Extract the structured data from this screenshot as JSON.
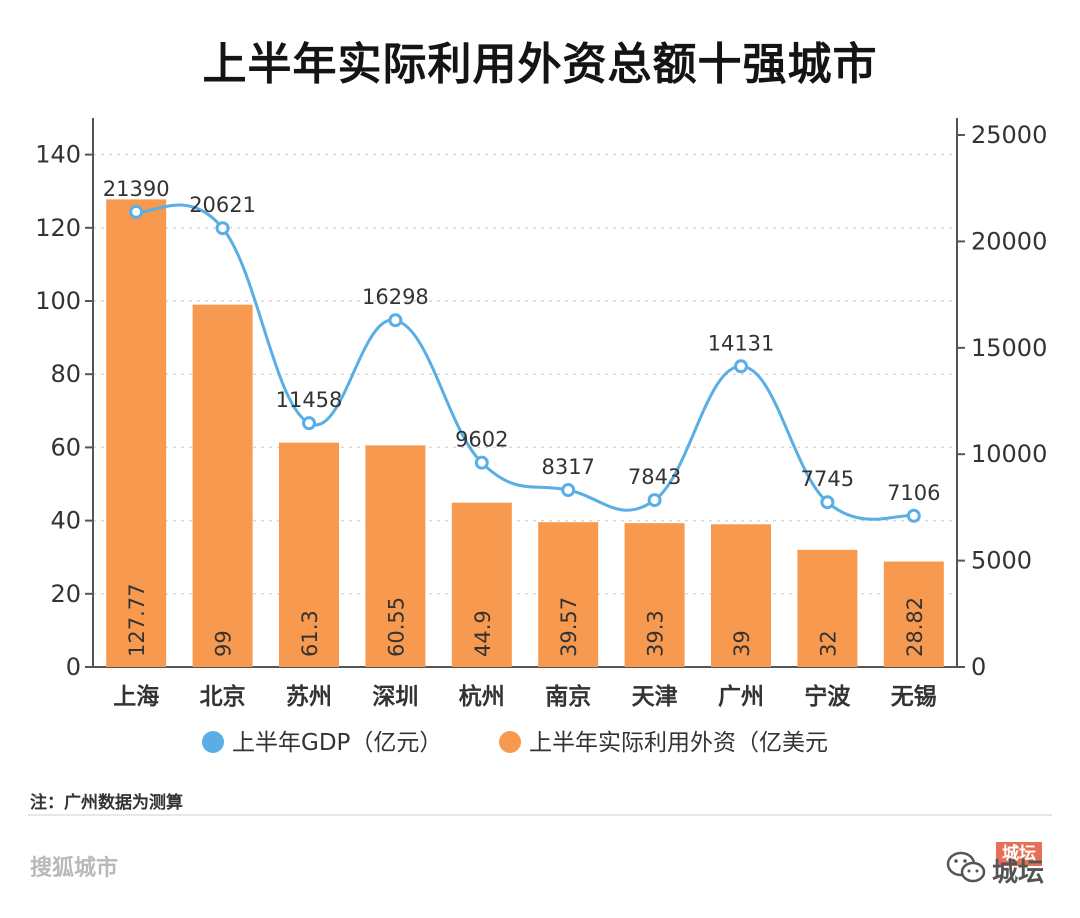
{
  "page": {
    "title": "上半年实际利用外资总额十强城市"
  },
  "chart_data": {
    "type": "bar",
    "title": "上半年实际利用外资总额十强城市",
    "categories": [
      "上海",
      "北京",
      "苏州",
      "深圳",
      "杭州",
      "南京",
      "天津",
      "广州",
      "宁波",
      "无锡"
    ],
    "series": [
      {
        "name": "上半年实际利用外资（亿美元",
        "type": "bar",
        "axis": "left",
        "color": "#f79a4f",
        "values": [
          127.77,
          99,
          61.3,
          60.55,
          44.9,
          39.57,
          39.3,
          39,
          32,
          28.82
        ],
        "labels": [
          "127.77",
          "99",
          "61.3",
          "60.55",
          "44.9",
          "39.57",
          "39.3",
          "39",
          "32",
          "28.82"
        ]
      },
      {
        "name": "上半年GDP（亿元）",
        "type": "line",
        "axis": "right",
        "color": "#5aaee6",
        "values": [
          21390,
          20621,
          11458,
          16298,
          9602,
          8317,
          7843,
          14131,
          7745,
          7106
        ],
        "labels": [
          "21390",
          "20621",
          "11458",
          "16298",
          "9602",
          "8317",
          "7843",
          "14131",
          "7745",
          "7106"
        ]
      }
    ],
    "y_left": {
      "min": 0,
      "max": 150,
      "ticks": [
        0,
        20,
        40,
        60,
        80,
        100,
        120,
        140
      ],
      "tick_labels": [
        "0",
        "20",
        "40",
        "60",
        "80",
        "100",
        "120",
        "140"
      ]
    },
    "y_right": {
      "min": 0,
      "max": 25800,
      "ticks": [
        0,
        5000,
        10000,
        15000,
        20000,
        25000
      ],
      "tick_labels": [
        "0",
        "5000",
        "10000",
        "15000",
        "20000",
        "25000"
      ]
    },
    "grid": true,
    "legend_position": "bottom"
  },
  "note": "注：广州数据为测算",
  "footer": {
    "brand": "搜狐城市",
    "badge": "城坛",
    "watermark": "城坛"
  }
}
